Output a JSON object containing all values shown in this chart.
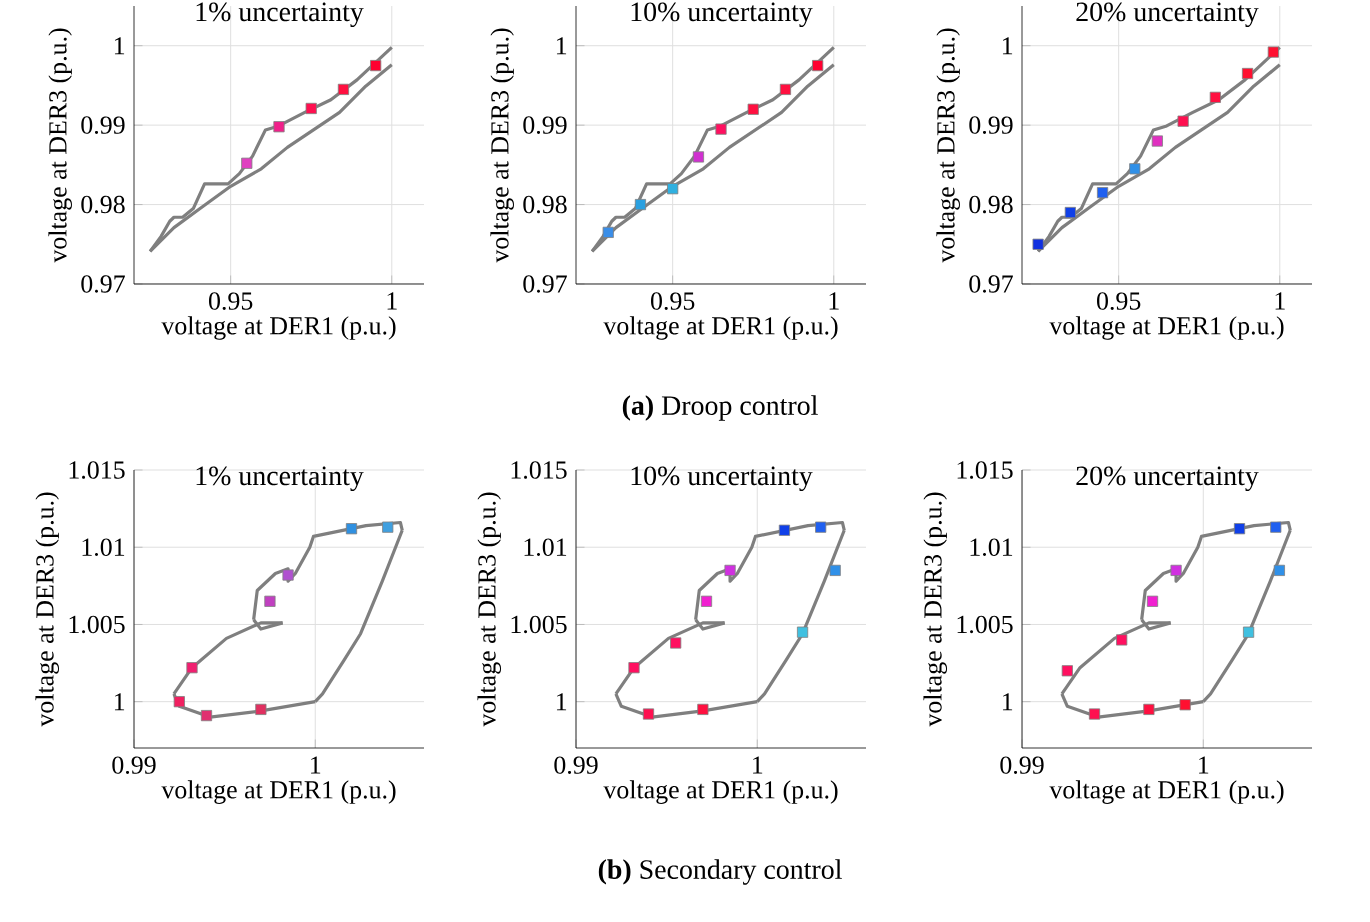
{
  "chart_data": [
    {
      "type": "line",
      "title": "1% uncertainty",
      "xlabel": "voltage at DER1 (p.u.)",
      "ylabel": "voltage at DER3 (p.u.)",
      "xlim": [
        0.92,
        1.01
      ],
      "ylim": [
        0.97,
        1.005
      ],
      "xticks": [
        0.95,
        1
      ],
      "yticks": [
        0.97,
        0.98,
        0.99,
        1
      ],
      "grid": true,
      "series": [
        {
          "type": "line",
          "color": "#7f7f7f",
          "x": [
            0.925,
            0.9284,
            0.9311,
            0.9324,
            0.9351,
            0.9384,
            0.9419,
            0.9492,
            0.9527,
            0.9568,
            0.9608,
            0.9649,
            0.973,
            0.9811,
            0.9892,
            1.0
          ],
          "values": [
            0.9741,
            0.976,
            0.9779,
            0.9784,
            0.9784,
            0.9795,
            0.9826,
            0.9826,
            0.9839,
            0.9861,
            0.9894,
            0.9899,
            0.9916,
            0.9932,
            0.9957,
            0.9998
          ]
        },
        {
          "type": "line",
          "color": "#7f7f7f",
          "x": [
            0.925,
            0.9324,
            0.9405,
            0.95,
            0.9595,
            0.9676,
            0.9757,
            0.9838,
            0.9919,
            1.0
          ],
          "values": [
            0.9741,
            0.9771,
            0.9795,
            0.9823,
            0.9845,
            0.9872,
            0.9894,
            0.9916,
            0.9949,
            0.9976
          ]
        },
        {
          "type": "scatter",
          "marker": "square",
          "x": [
            0.955,
            0.965,
            0.975,
            0.985,
            0.995
          ],
          "values": [
            0.9852,
            0.9898,
            0.9921,
            0.9945,
            0.9975
          ],
          "colors": [
            "#e040c0",
            "#f0208a",
            "#ff1050",
            "#ff1040",
            "#ff0030"
          ]
        }
      ]
    },
    {
      "type": "line",
      "title": "10% uncertainty",
      "xlabel": "voltage at DER1 (p.u.)",
      "ylabel": "voltage at DER3 (p.u.)",
      "xlim": [
        0.92,
        1.01
      ],
      "ylim": [
        0.97,
        1.005
      ],
      "xticks": [
        0.95,
        1
      ],
      "yticks": [
        0.97,
        0.98,
        0.99,
        1
      ],
      "grid": true,
      "annotations": [
        "**(a)** Droop control"
      ],
      "series": [
        {
          "type": "line",
          "color": "#7f7f7f",
          "x": [
            0.925,
            0.9284,
            0.9311,
            0.9324,
            0.9351,
            0.9384,
            0.9419,
            0.9492,
            0.9527,
            0.9568,
            0.9608,
            0.9649,
            0.973,
            0.9811,
            0.9892,
            1.0
          ],
          "values": [
            0.9741,
            0.976,
            0.9779,
            0.9784,
            0.9784,
            0.9795,
            0.9826,
            0.9826,
            0.9839,
            0.9861,
            0.9894,
            0.9899,
            0.9916,
            0.9932,
            0.9957,
            0.9998
          ]
        },
        {
          "type": "line",
          "color": "#7f7f7f",
          "x": [
            0.925,
            0.9324,
            0.9405,
            0.95,
            0.9595,
            0.9676,
            0.9757,
            0.9838,
            0.9919,
            1.0
          ],
          "values": [
            0.9741,
            0.9771,
            0.9795,
            0.9823,
            0.9845,
            0.9872,
            0.9894,
            0.9916,
            0.9949,
            0.9976
          ]
        },
        {
          "type": "scatter",
          "marker": "square",
          "x": [
            0.93,
            0.94,
            0.95,
            0.958,
            0.965,
            0.975,
            0.985,
            0.995
          ],
          "values": [
            0.9765,
            0.98,
            0.982,
            0.986,
            0.9895,
            0.992,
            0.9945,
            0.9975
          ],
          "colors": [
            "#3a8ee8",
            "#2aa0e0",
            "#30b0e0",
            "#d030d0",
            "#ff1060",
            "#ff1040",
            "#ff1040",
            "#ff0030"
          ]
        }
      ]
    },
    {
      "type": "line",
      "title": "20% uncertainty",
      "xlabel": "voltage at DER1 (p.u.)",
      "ylabel": "voltage at DER3 (p.u.)",
      "xlim": [
        0.92,
        1.01
      ],
      "ylim": [
        0.97,
        1.005
      ],
      "xticks": [
        0.95,
        1
      ],
      "yticks": [
        0.97,
        0.98,
        0.99,
        1
      ],
      "grid": true,
      "series": [
        {
          "type": "line",
          "color": "#7f7f7f",
          "x": [
            0.925,
            0.9284,
            0.9311,
            0.9324,
            0.9351,
            0.9384,
            0.9419,
            0.9492,
            0.9527,
            0.9568,
            0.9608,
            0.9649,
            0.973,
            0.9811,
            0.9892,
            1.0
          ],
          "values": [
            0.9741,
            0.976,
            0.9779,
            0.9784,
            0.9784,
            0.9795,
            0.9826,
            0.9826,
            0.9839,
            0.9861,
            0.9894,
            0.9899,
            0.9916,
            0.9932,
            0.9957,
            0.9998
          ]
        },
        {
          "type": "line",
          "color": "#7f7f7f",
          "x": [
            0.925,
            0.9324,
            0.9405,
            0.95,
            0.9595,
            0.9676,
            0.9757,
            0.9838,
            0.9919,
            1.0
          ],
          "values": [
            0.9741,
            0.9771,
            0.9795,
            0.9823,
            0.9845,
            0.9872,
            0.9894,
            0.9916,
            0.9949,
            0.9976
          ]
        },
        {
          "type": "scatter",
          "marker": "square",
          "x": [
            0.925,
            0.935,
            0.945,
            0.955,
            0.962,
            0.97,
            0.98,
            0.99,
            0.998
          ],
          "values": [
            0.975,
            0.979,
            0.9815,
            0.9845,
            0.988,
            0.9905,
            0.9935,
            0.9965,
            0.9992
          ],
          "colors": [
            "#1030e0",
            "#1040e8",
            "#2060f0",
            "#3090e8",
            "#e030c0",
            "#ff1050",
            "#ff1040",
            "#ff1030",
            "#ff1030"
          ]
        }
      ]
    },
    {
      "type": "line",
      "title": "1% uncertainty",
      "xlabel": "voltage at DER1 (p.u.)",
      "ylabel": "voltage at DER3 (p.u.)",
      "xlim": [
        0.99,
        1.006
      ],
      "ylim": [
        0.997,
        1.015
      ],
      "xticks": [
        0.99,
        1
      ],
      "yticks": [
        1,
        1.005,
        1.01,
        1.015
      ],
      "grid": true,
      "series": [
        {
          "type": "line",
          "color": "#7f7f7f",
          "x": [
            0.9922,
            0.9925,
            0.9942,
            0.997,
            1.0
          ],
          "values": [
            1.0005,
            0.9997,
            0.999,
            0.9994,
            1.0
          ]
        },
        {
          "type": "line",
          "color": "#7f7f7f",
          "x": [
            0.9922,
            0.9932,
            0.9951,
            0.997,
            0.9982
          ],
          "values": [
            1.0005,
            1.0022,
            1.0041,
            1.0051,
            1.0051
          ]
        },
        {
          "type": "line",
          "color": "#7f7f7f",
          "x": [
            0.9966,
            0.997,
            0.9982
          ],
          "values": [
            1.0053,
            1.0047,
            1.0051
          ]
        },
        {
          "type": "line",
          "color": "#7f7f7f",
          "x": [
            0.9966,
            0.9968,
            0.9978,
            0.9985,
            0.9985,
            0.9989,
            0.9997,
            0.9999,
            1.0028,
            1.0047,
            1.0048
          ],
          "values": [
            1.0053,
            1.0072,
            1.0083,
            1.0086,
            1.0078,
            1.0083,
            1.01,
            1.0107,
            1.0114,
            1.0116,
            1.0111
          ]
        },
        {
          "type": "line",
          "color": "#7f7f7f",
          "x": [
            1.0,
            1.0004,
            1.0016,
            1.0025,
            1.0037,
            1.0048
          ],
          "values": [
            1.0,
            1.0005,
            1.0027,
            1.0044,
            1.0078,
            1.0111
          ]
        },
        {
          "type": "scatter",
          "marker": "square",
          "x": [
            0.9932,
            0.9925,
            0.994,
            0.997,
            0.9975,
            0.9985,
            1.002,
            1.004
          ],
          "values": [
            1.0022,
            1.0,
            0.9991,
            0.9995,
            1.0065,
            1.0082,
            1.0112,
            1.0113
          ],
          "colors": [
            "#f02070",
            "#f02060",
            "#e03070",
            "#e03060",
            "#c040c0",
            "#b050d0",
            "#3090e0",
            "#40a0e0"
          ]
        }
      ]
    },
    {
      "type": "line",
      "title": "10% uncertainty",
      "xlabel": "voltage at DER1 (p.u.)",
      "ylabel": "voltage at DER3 (p.u.)",
      "xlim": [
        0.99,
        1.006
      ],
      "ylim": [
        0.997,
        1.015
      ],
      "xticks": [
        0.99,
        1
      ],
      "yticks": [
        1,
        1.005,
        1.01,
        1.015
      ],
      "grid": true,
      "annotations": [
        "**(b)** Secondary control"
      ],
      "series": [
        {
          "type": "line",
          "color": "#7f7f7f",
          "x": [
            0.9922,
            0.9925,
            0.9942,
            0.997,
            1.0
          ],
          "values": [
            1.0005,
            0.9997,
            0.999,
            0.9994,
            1.0
          ]
        },
        {
          "type": "line",
          "color": "#7f7f7f",
          "x": [
            0.9922,
            0.9932,
            0.9951,
            0.997,
            0.9982
          ],
          "values": [
            1.0005,
            1.0022,
            1.0041,
            1.0051,
            1.0051
          ]
        },
        {
          "type": "line",
          "color": "#7f7f7f",
          "x": [
            0.9966,
            0.997,
            0.9982
          ],
          "values": [
            1.0053,
            1.0047,
            1.0051
          ]
        },
        {
          "type": "line",
          "color": "#7f7f7f",
          "x": [
            0.9966,
            0.9968,
            0.9978,
            0.9985,
            0.9985,
            0.9989,
            0.9997,
            0.9999,
            1.0028,
            1.0047,
            1.0048
          ],
          "values": [
            1.0053,
            1.0072,
            1.0083,
            1.0086,
            1.0078,
            1.0083,
            1.01,
            1.0107,
            1.0114,
            1.0116,
            1.0111
          ]
        },
        {
          "type": "line",
          "color": "#7f7f7f",
          "x": [
            1.0,
            1.0004,
            1.0016,
            1.0025,
            1.0037,
            1.0048
          ],
          "values": [
            1.0,
            1.0005,
            1.0027,
            1.0044,
            1.0078,
            1.0111
          ]
        },
        {
          "type": "scatter",
          "marker": "square",
          "x": [
            0.9932,
            0.994,
            0.9955,
            0.997,
            0.9972,
            0.9985,
            1.0015,
            1.0035,
            1.0043,
            1.0025
          ],
          "values": [
            1.0022,
            0.9992,
            1.0038,
            0.9995,
            1.0065,
            1.0085,
            1.0111,
            1.0113,
            1.0085,
            1.0045
          ],
          "colors": [
            "#ff1060",
            "#ff1050",
            "#ff1060",
            "#ff1040",
            "#f020d0",
            "#d030e0",
            "#1040e8",
            "#2060f0",
            "#3090e8",
            "#40c0e0"
          ]
        }
      ]
    },
    {
      "type": "line",
      "title": "20% uncertainty",
      "xlabel": "voltage at DER1 (p.u.)",
      "ylabel": "voltage at DER3 (p.u.)",
      "xlim": [
        0.99,
        1.006
      ],
      "ylim": [
        0.997,
        1.015
      ],
      "xticks": [
        0.99,
        1
      ],
      "yticks": [
        1,
        1.005,
        1.01,
        1.015
      ],
      "grid": true,
      "series": [
        {
          "type": "line",
          "color": "#7f7f7f",
          "x": [
            0.9922,
            0.9925,
            0.9942,
            0.997,
            1.0
          ],
          "values": [
            1.0005,
            0.9997,
            0.999,
            0.9994,
            1.0
          ]
        },
        {
          "type": "line",
          "color": "#7f7f7f",
          "x": [
            0.9922,
            0.9932,
            0.9951,
            0.997,
            0.9982
          ],
          "values": [
            1.0005,
            1.0022,
            1.0041,
            1.0051,
            1.0051
          ]
        },
        {
          "type": "line",
          "color": "#7f7f7f",
          "x": [
            0.9966,
            0.997,
            0.9982
          ],
          "values": [
            1.0053,
            1.0047,
            1.0051
          ]
        },
        {
          "type": "line",
          "color": "#7f7f7f",
          "x": [
            0.9966,
            0.9968,
            0.9978,
            0.9985,
            0.9985,
            0.9989,
            0.9997,
            0.9999,
            1.0028,
            1.0047,
            1.0048
          ],
          "values": [
            1.0053,
            1.0072,
            1.0083,
            1.0086,
            1.0078,
            1.0083,
            1.01,
            1.0107,
            1.0114,
            1.0116,
            1.0111
          ]
        },
        {
          "type": "line",
          "color": "#7f7f7f",
          "x": [
            1.0,
            1.0004,
            1.0016,
            1.0025,
            1.0037,
            1.0048
          ],
          "values": [
            1.0,
            1.0005,
            1.0027,
            1.0044,
            1.0078,
            1.0111
          ]
        },
        {
          "type": "scatter",
          "marker": "square",
          "x": [
            0.9925,
            0.994,
            0.9955,
            0.997,
            0.999,
            0.9972,
            0.9985,
            1.002,
            1.004,
            1.0042,
            1.0025
          ],
          "values": [
            1.002,
            0.9992,
            1.004,
            0.9995,
            0.9998,
            1.0065,
            1.0085,
            1.0112,
            1.0113,
            1.0085,
            1.0045
          ],
          "colors": [
            "#ff1060",
            "#ff1050",
            "#ff1060",
            "#ff1040",
            "#ff1030",
            "#f020d0",
            "#d030e0",
            "#1040e8",
            "#2060f0",
            "#3090e8",
            "#40c0e0"
          ]
        }
      ]
    }
  ]
}
